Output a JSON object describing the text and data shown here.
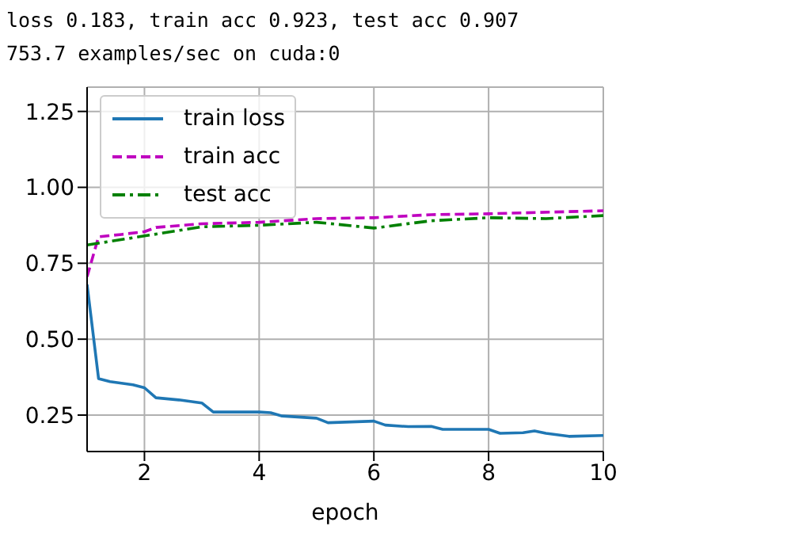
{
  "chart_data": {
    "type": "line",
    "title": "loss 0.183, train acc 0.923, test acc 0.907",
    "subtitle": "753.7 examples/sec on cuda:0",
    "xlabel": "epoch",
    "xlim": [
      1,
      10
    ],
    "xticks": [
      2,
      4,
      6,
      8,
      10
    ],
    "ylim": [
      0.13,
      1.33
    ],
    "yticks": [
      0.25,
      {
        "value": 0.5,
        "label": "0.50"
      },
      0.75,
      {
        "value": 1,
        "label": "1.00"
      },
      1.25
    ],
    "grid": true,
    "legend": "top left",
    "marker": "none",
    "series": [
      {
        "name": "train loss",
        "color": "#1f77b4",
        "line_style": "solid",
        "x": [
          1,
          1.2,
          1.4,
          1.8,
          2,
          2.2,
          2.6,
          3,
          3.2,
          4,
          4.2,
          4.4,
          5,
          5.2,
          6,
          6.2,
          6.6,
          7,
          7.2,
          8,
          8.2,
          8.6,
          8.8,
          9,
          9.4,
          10
        ],
        "values": [
          0.68,
          0.37,
          0.36,
          0.35,
          0.34,
          0.307,
          0.3,
          0.29,
          0.26,
          0.26,
          0.258,
          0.247,
          0.24,
          0.225,
          0.23,
          0.217,
          0.212,
          0.213,
          0.203,
          0.203,
          0.19,
          0.192,
          0.198,
          0.19,
          0.18,
          0.183
        ]
      },
      {
        "name": "train acc",
        "color": "#bf00bf",
        "line_style": "dashed",
        "x": [
          1,
          1.2,
          1.6,
          2,
          2.2,
          3,
          4,
          5,
          6,
          7,
          8,
          10
        ],
        "values": [
          0.706,
          0.837,
          0.845,
          0.854,
          0.868,
          0.88,
          0.885,
          0.897,
          0.9,
          0.91,
          0.913,
          0.923
        ]
      },
      {
        "name": "test acc",
        "color": "#008000",
        "line_style": "dashdot",
        "x": [
          1,
          2,
          3,
          4,
          5,
          6,
          7,
          8,
          9,
          10
        ],
        "values": [
          0.81,
          0.84,
          0.87,
          0.875,
          0.885,
          0.866,
          0.89,
          0.9,
          0.897,
          0.907
        ]
      }
    ]
  }
}
